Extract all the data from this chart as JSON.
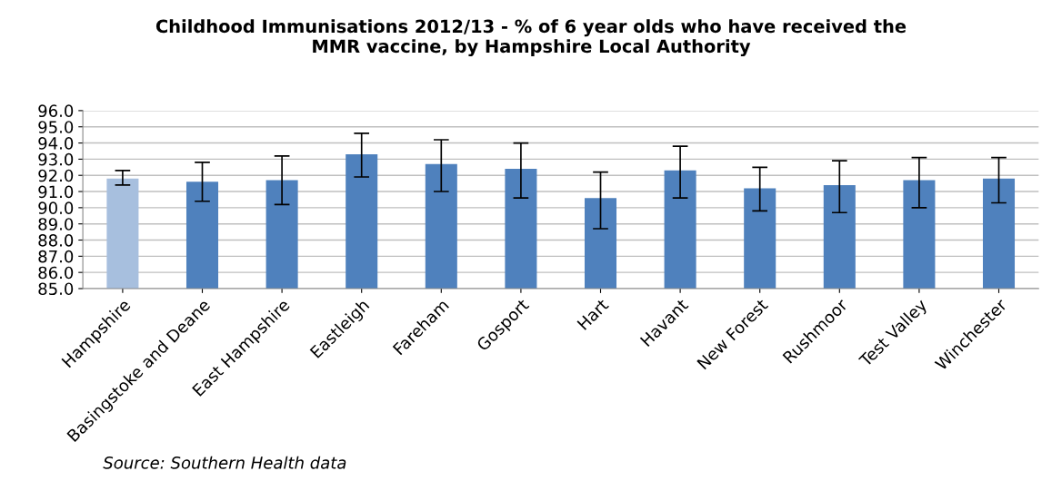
{
  "chart_data": {
    "type": "bar",
    "title": "Childhood Immunisations 2012/13 - % of 6 year olds who have received the\nMMR vaccine, by Hampshire Local Authority",
    "categories": [
      "Hampshire",
      "Basingstoke and Deane",
      "East Hampshire",
      "Eastleigh",
      "Fareham",
      "Gosport",
      "Hart",
      "Havant",
      "New Forest",
      "Rushmoor",
      "Test Valley",
      "Winchester"
    ],
    "values": [
      91.8,
      91.6,
      91.7,
      93.3,
      92.7,
      92.4,
      90.6,
      92.3,
      91.2,
      91.4,
      91.7,
      91.8
    ],
    "colors": [
      "#a7bfde",
      "#4f81bd",
      "#4f81bd",
      "#4f81bd",
      "#4f81bd",
      "#4f81bd",
      "#4f81bd",
      "#4f81bd",
      "#4f81bd",
      "#4f81bd",
      "#4f81bd",
      "#4f81bd"
    ],
    "errors": [
      [
        91.4,
        92.3
      ],
      [
        90.4,
        92.8
      ],
      [
        90.2,
        93.2
      ],
      [
        91.9,
        94.6
      ],
      [
        91.0,
        94.2
      ],
      [
        90.6,
        94.0
      ],
      [
        88.7,
        92.2
      ],
      [
        90.6,
        93.8
      ],
      [
        89.8,
        92.5
      ],
      [
        89.7,
        92.9
      ],
      [
        90.0,
        93.1
      ],
      [
        90.3,
        93.1
      ]
    ],
    "ylim": [
      85,
      96
    ],
    "yticks": [
      {
        "value": 85,
        "label": "85.0"
      },
      {
        "value": 86,
        "label": "86.0"
      },
      {
        "value": 87,
        "label": "87.0"
      },
      {
        "value": 88,
        "label": "88.0"
      },
      {
        "value": 89,
        "label": "89.0"
      },
      {
        "value": 90,
        "label": "90.0"
      },
      {
        "value": 91,
        "label": "91.0"
      },
      {
        "value": 92,
        "label": "92.0"
      },
      {
        "value": 93,
        "label": "93.0"
      },
      {
        "value": 94,
        "label": "94.0"
      },
      {
        "value": 95,
        "label": "95.0"
      },
      {
        "value": 96,
        "label": "96.0"
      }
    ],
    "grid": "y",
    "annotations": [
      "Source: Southern Health data"
    ]
  }
}
